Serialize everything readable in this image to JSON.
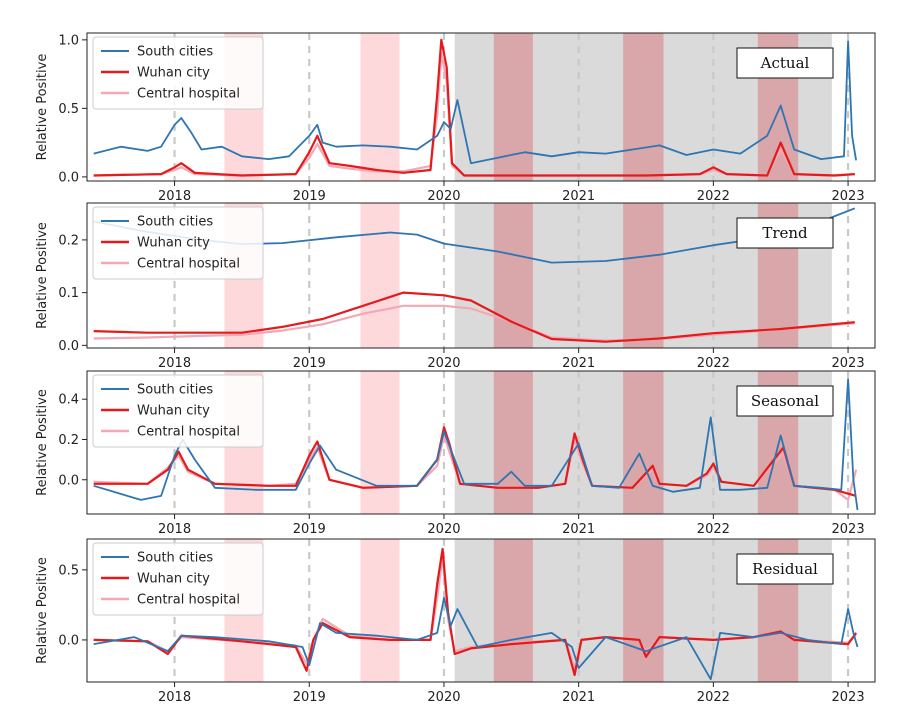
{
  "colors": {
    "south": "#2f75b2",
    "wuhan": "#e41a1c",
    "central": "#f4a7b4",
    "shade_red": "#fdd9dc",
    "shade_gray": "#dadada",
    "shade_dark": "#d9a6a9",
    "dashed": "#c9c9c9"
  },
  "chart_data": [
    {
      "type": "line",
      "panel_label": "Actual",
      "ylabel": "Relative Positive",
      "xlim": [
        2017.35,
        2023.2
      ],
      "ylim": [
        -0.03,
        1.05
      ],
      "yticks": [
        0.0,
        0.5,
        1.0
      ],
      "ytick_labels": [
        "0.0",
        "0.5",
        "1.0"
      ],
      "xticks": [
        2018,
        2019,
        2020,
        2021,
        2022,
        2023
      ],
      "xtick_labels": [
        "2018",
        "2019",
        "2020",
        "2021",
        "2022",
        "2023"
      ],
      "legend": "top-left",
      "red_shades": [
        [
          2018.37,
          2018.66
        ],
        [
          2019.38,
          2019.67
        ],
        [
          2020.37,
          2020.66
        ],
        [
          2021.33,
          2021.63
        ],
        [
          2022.33,
          2022.63
        ]
      ],
      "gray_band": [
        2020.08,
        2022.88
      ],
      "series": [
        {
          "name": "South cities",
          "key": "south",
          "x": [
            2017.4,
            2017.6,
            2017.8,
            2017.9,
            2018.0,
            2018.05,
            2018.12,
            2018.2,
            2018.35,
            2018.5,
            2018.7,
            2018.85,
            2019.0,
            2019.06,
            2019.1,
            2019.2,
            2019.4,
            2019.6,
            2019.8,
            2019.95,
            2020.0,
            2020.05,
            2020.1,
            2020.2,
            2020.4,
            2020.6,
            2020.8,
            2021.0,
            2021.2,
            2021.4,
            2021.6,
            2021.8,
            2022.0,
            2022.2,
            2022.4,
            2022.5,
            2022.6,
            2022.8,
            2022.97,
            2023.0,
            2023.03,
            2023.06
          ],
          "y": [
            0.17,
            0.22,
            0.19,
            0.22,
            0.38,
            0.43,
            0.33,
            0.2,
            0.22,
            0.15,
            0.13,
            0.15,
            0.3,
            0.38,
            0.25,
            0.22,
            0.23,
            0.22,
            0.2,
            0.3,
            0.4,
            0.35,
            0.56,
            0.1,
            0.14,
            0.18,
            0.15,
            0.18,
            0.17,
            0.2,
            0.23,
            0.16,
            0.2,
            0.17,
            0.3,
            0.52,
            0.2,
            0.13,
            0.15,
            0.99,
            0.3,
            0.12
          ]
        },
        {
          "name": "Wuhan city",
          "key": "wuhan",
          "x": [
            2017.4,
            2017.9,
            2018.0,
            2018.05,
            2018.15,
            2018.5,
            2018.9,
            2019.0,
            2019.06,
            2019.15,
            2019.3,
            2019.5,
            2019.7,
            2019.9,
            2019.95,
            2019.98,
            2020.02,
            2020.06,
            2020.15,
            2020.5,
            2021.0,
            2021.5,
            2021.9,
            2022.0,
            2022.1,
            2022.4,
            2022.5,
            2022.6,
            2022.9,
            2023.05
          ],
          "y": [
            0.01,
            0.02,
            0.07,
            0.1,
            0.03,
            0.01,
            0.02,
            0.18,
            0.3,
            0.1,
            0.08,
            0.05,
            0.03,
            0.05,
            0.6,
            1.0,
            0.8,
            0.1,
            0.01,
            0.01,
            0.01,
            0.01,
            0.02,
            0.07,
            0.02,
            0.01,
            0.25,
            0.02,
            0.01,
            0.02
          ]
        },
        {
          "name": "Central hospital",
          "key": "central",
          "x": [
            2017.4,
            2017.9,
            2018.0,
            2018.05,
            2018.15,
            2018.5,
            2018.9,
            2019.0,
            2019.06,
            2019.15,
            2019.3,
            2019.5,
            2019.7,
            2019.9,
            2019.95,
            2019.98,
            2020.02,
            2020.06,
            2020.15,
            2020.5,
            2021.0,
            2021.5,
            2021.9,
            2022.0,
            2022.1,
            2022.4,
            2022.5,
            2022.6,
            2022.9,
            2023.05
          ],
          "y": [
            0.01,
            0.02,
            0.05,
            0.07,
            0.02,
            0.01,
            0.02,
            0.14,
            0.24,
            0.08,
            0.06,
            0.04,
            0.04,
            0.08,
            0.45,
            0.9,
            0.7,
            0.08,
            0.01,
            0.01,
            0.01,
            0.01,
            0.02,
            0.05,
            0.02,
            0.01,
            0.2,
            0.02,
            0.01,
            0.02
          ]
        }
      ]
    },
    {
      "type": "line",
      "panel_label": "Trend",
      "ylabel": "Relative Positive",
      "xlim": [
        2017.35,
        2023.2
      ],
      "ylim": [
        -0.005,
        0.27
      ],
      "yticks": [
        0.0,
        0.1,
        0.2
      ],
      "ytick_labels": [
        "0.0",
        "0.1",
        "0.2"
      ],
      "xticks": [
        2018,
        2019,
        2020,
        2021,
        2022,
        2023
      ],
      "xtick_labels": [
        "2018",
        "2019",
        "2020",
        "2021",
        "2022",
        "2023"
      ],
      "legend": "top-left",
      "red_shades": [
        [
          2018.37,
          2018.66
        ],
        [
          2019.38,
          2019.67
        ],
        [
          2020.37,
          2020.66
        ],
        [
          2021.33,
          2021.63
        ],
        [
          2022.33,
          2022.63
        ]
      ],
      "gray_band": [
        2020.08,
        2022.88
      ],
      "series": [
        {
          "name": "South cities",
          "key": "south",
          "x": [
            2017.4,
            2017.8,
            2018.2,
            2018.5,
            2018.8,
            2019.2,
            2019.6,
            2019.8,
            2020.0,
            2020.4,
            2020.8,
            2021.2,
            2021.6,
            2022.0,
            2022.4,
            2022.8,
            2023.05
          ],
          "y": [
            0.235,
            0.215,
            0.2,
            0.192,
            0.194,
            0.205,
            0.214,
            0.21,
            0.193,
            0.178,
            0.157,
            0.16,
            0.172,
            0.19,
            0.205,
            0.235,
            0.26
          ]
        },
        {
          "name": "Wuhan city",
          "key": "wuhan",
          "x": [
            2017.4,
            2017.8,
            2018.2,
            2018.5,
            2018.8,
            2019.1,
            2019.4,
            2019.7,
            2020.0,
            2020.2,
            2020.5,
            2020.8,
            2021.2,
            2021.6,
            2022.0,
            2022.5,
            2023.05
          ],
          "y": [
            0.027,
            0.024,
            0.024,
            0.024,
            0.035,
            0.05,
            0.075,
            0.1,
            0.095,
            0.085,
            0.045,
            0.012,
            0.007,
            0.013,
            0.023,
            0.031,
            0.044
          ]
        },
        {
          "name": "Central hospital",
          "key": "central",
          "x": [
            2017.4,
            2017.8,
            2018.2,
            2018.5,
            2018.8,
            2019.1,
            2019.4,
            2019.7,
            2020.0,
            2020.2,
            2020.5,
            2020.8,
            2021.2,
            2021.6,
            2022.0,
            2022.5,
            2023.05
          ],
          "y": [
            0.013,
            0.015,
            0.018,
            0.02,
            0.028,
            0.04,
            0.06,
            0.075,
            0.075,
            0.07,
            0.045,
            0.015,
            0.009,
            0.012,
            0.02,
            0.03,
            0.042
          ]
        }
      ]
    },
    {
      "type": "line",
      "panel_label": "Seasonal",
      "ylabel": "Relative Positive",
      "xlim": [
        2017.35,
        2023.2
      ],
      "ylim": [
        -0.17,
        0.54
      ],
      "yticks": [
        0.0,
        0.2,
        0.4
      ],
      "ytick_labels": [
        "0.0",
        "0.2",
        "0.4"
      ],
      "xticks": [
        2018,
        2019,
        2020,
        2021,
        2022,
        2023
      ],
      "xtick_labels": [
        "2018",
        "2019",
        "2020",
        "2021",
        "2022",
        "2023"
      ],
      "legend": "top-left",
      "red_shades": [
        [
          2018.37,
          2018.66
        ],
        [
          2019.38,
          2019.67
        ],
        [
          2020.37,
          2020.66
        ],
        [
          2021.33,
          2021.63
        ],
        [
          2022.33,
          2022.63
        ]
      ],
      "gray_band": [
        2020.08,
        2022.88
      ],
      "series": [
        {
          "name": "South cities",
          "key": "south",
          "x": [
            2017.4,
            2017.6,
            2017.75,
            2017.9,
            2018.0,
            2018.06,
            2018.15,
            2018.3,
            2018.6,
            2018.9,
            2019.0,
            2019.08,
            2019.2,
            2019.5,
            2019.8,
            2019.95,
            2020.0,
            2020.05,
            2020.15,
            2020.4,
            2020.5,
            2020.6,
            2020.8,
            2021.0,
            2021.1,
            2021.3,
            2021.45,
            2021.55,
            2021.7,
            2021.9,
            2021.98,
            2022.05,
            2022.2,
            2022.4,
            2022.5,
            2022.6,
            2022.8,
            2022.95,
            2023.0,
            2023.04,
            2023.07
          ],
          "y": [
            -0.03,
            -0.07,
            -0.1,
            -0.08,
            0.12,
            0.2,
            0.1,
            -0.04,
            -0.05,
            -0.05,
            0.08,
            0.17,
            0.05,
            -0.03,
            -0.03,
            0.1,
            0.24,
            0.15,
            -0.02,
            -0.02,
            0.04,
            -0.03,
            -0.03,
            0.18,
            -0.03,
            -0.04,
            0.13,
            -0.03,
            -0.06,
            -0.04,
            0.31,
            -0.05,
            -0.05,
            -0.04,
            0.22,
            -0.03,
            -0.04,
            -0.05,
            0.5,
            0.0,
            -0.15
          ]
        },
        {
          "name": "Wuhan city",
          "key": "wuhan",
          "x": [
            2017.4,
            2017.8,
            2017.95,
            2018.03,
            2018.1,
            2018.3,
            2018.7,
            2018.9,
            2019.0,
            2019.06,
            2019.15,
            2019.4,
            2019.8,
            2019.95,
            2020.0,
            2020.04,
            2020.12,
            2020.4,
            2020.7,
            2020.9,
            2020.97,
            2021.03,
            2021.1,
            2021.4,
            2021.55,
            2021.6,
            2021.8,
            2021.95,
            2022.0,
            2022.06,
            2022.3,
            2022.45,
            2022.52,
            2022.6,
            2022.9,
            2023.06
          ],
          "y": [
            -0.02,
            -0.02,
            0.05,
            0.14,
            0.05,
            -0.02,
            -0.03,
            -0.03,
            0.12,
            0.19,
            0.0,
            -0.04,
            -0.03,
            0.1,
            0.26,
            0.18,
            -0.02,
            -0.04,
            -0.04,
            -0.02,
            0.23,
            0.1,
            -0.03,
            -0.04,
            0.07,
            -0.02,
            -0.03,
            0.03,
            0.08,
            -0.01,
            -0.03,
            0.1,
            0.16,
            -0.03,
            -0.05,
            -0.08
          ]
        },
        {
          "name": "Central hospital",
          "key": "central",
          "x": [
            2017.4,
            2017.8,
            2017.95,
            2018.03,
            2018.1,
            2018.3,
            2018.7,
            2018.9,
            2019.0,
            2019.06,
            2019.15,
            2019.4,
            2019.8,
            2019.95,
            2020.0,
            2020.04,
            2020.12,
            2020.4,
            2020.7,
            2020.9,
            2020.97,
            2021.03,
            2021.1,
            2021.4,
            2021.55,
            2021.6,
            2021.8,
            2021.95,
            2022.0,
            2022.06,
            2022.3,
            2022.45,
            2022.52,
            2022.6,
            2022.9,
            2023.0,
            2023.06
          ],
          "y": [
            -0.01,
            -0.02,
            0.06,
            0.12,
            0.04,
            -0.02,
            -0.03,
            -0.02,
            0.1,
            0.16,
            0.0,
            -0.04,
            -0.03,
            0.07,
            0.22,
            0.14,
            -0.02,
            -0.04,
            -0.04,
            -0.02,
            0.2,
            0.08,
            -0.03,
            -0.04,
            0.05,
            -0.02,
            -0.03,
            0.02,
            0.06,
            -0.01,
            -0.03,
            0.08,
            0.13,
            -0.03,
            -0.05,
            -0.1,
            0.05
          ]
        }
      ]
    },
    {
      "type": "line",
      "panel_label": "Residual",
      "ylabel": "Relative Positive",
      "xlim": [
        2017.35,
        2023.2
      ],
      "ylim": [
        -0.3,
        0.72
      ],
      "yticks": [
        0.0,
        0.5
      ],
      "ytick_labels": [
        "0.0",
        "0.5"
      ],
      "xticks": [
        2018,
        2019,
        2020,
        2021,
        2022,
        2023
      ],
      "xtick_labels": [
        "2018",
        "2019",
        "2020",
        "2021",
        "2022",
        "2023"
      ],
      "legend": "top-left",
      "red_shades": [
        [
          2018.37,
          2018.66
        ],
        [
          2019.38,
          2019.67
        ],
        [
          2020.37,
          2020.66
        ],
        [
          2021.33,
          2021.63
        ],
        [
          2022.33,
          2022.63
        ]
      ],
      "gray_band": [
        2020.08,
        2022.88
      ],
      "series": [
        {
          "name": "South cities",
          "key": "south",
          "x": [
            2017.4,
            2017.7,
            2017.95,
            2018.05,
            2018.3,
            2018.7,
            2018.95,
            2019.0,
            2019.08,
            2019.2,
            2019.5,
            2019.8,
            2019.95,
            2020.0,
            2020.05,
            2020.1,
            2020.25,
            2020.5,
            2020.8,
            2020.95,
            2021.0,
            2021.2,
            2021.5,
            2021.8,
            2021.98,
            2022.05,
            2022.3,
            2022.5,
            2022.7,
            2022.95,
            2023.0,
            2023.04,
            2023.07
          ],
          "y": [
            -0.03,
            0.02,
            -0.08,
            0.03,
            0.02,
            -0.01,
            -0.05,
            -0.18,
            0.12,
            0.05,
            0.03,
            0.0,
            0.05,
            0.3,
            0.1,
            0.22,
            -0.05,
            0.0,
            0.05,
            -0.05,
            -0.2,
            0.02,
            -0.08,
            0.02,
            -0.28,
            0.05,
            0.02,
            0.05,
            0.0,
            -0.03,
            0.22,
            0.05,
            -0.05
          ]
        },
        {
          "name": "Wuhan city",
          "key": "wuhan",
          "x": [
            2017.4,
            2017.8,
            2017.95,
            2018.05,
            2018.5,
            2018.9,
            2018.98,
            2019.03,
            2019.1,
            2019.3,
            2019.6,
            2019.9,
            2019.95,
            2019.99,
            2020.03,
            2020.08,
            2020.2,
            2020.5,
            2020.9,
            2020.97,
            2021.02,
            2021.2,
            2021.45,
            2021.5,
            2021.6,
            2022.0,
            2022.3,
            2022.5,
            2022.6,
            2023.0,
            2023.06
          ],
          "y": [
            0.0,
            -0.01,
            -0.1,
            0.03,
            -0.01,
            -0.05,
            -0.22,
            0.0,
            0.12,
            0.02,
            0.0,
            0.0,
            0.4,
            0.65,
            0.2,
            -0.1,
            -0.06,
            -0.03,
            0.0,
            -0.25,
            0.0,
            0.02,
            0.0,
            -0.12,
            0.02,
            0.0,
            0.02,
            0.06,
            0.0,
            -0.03,
            0.05
          ]
        },
        {
          "name": "Central hospital",
          "key": "central",
          "x": [
            2017.4,
            2017.8,
            2017.95,
            2018.05,
            2018.5,
            2018.9,
            2018.98,
            2019.03,
            2019.1,
            2019.3,
            2019.6,
            2019.9,
            2019.95,
            2019.99,
            2020.03,
            2020.08,
            2020.2,
            2020.5,
            2020.9,
            2020.97,
            2021.02,
            2021.2,
            2021.45,
            2021.5,
            2021.6,
            2022.0,
            2022.3,
            2022.5,
            2022.6,
            2023.0,
            2023.06
          ],
          "y": [
            0.0,
            -0.01,
            -0.08,
            0.02,
            -0.01,
            -0.04,
            -0.17,
            0.0,
            0.15,
            0.03,
            0.0,
            0.0,
            0.3,
            0.6,
            0.15,
            -0.08,
            -0.05,
            -0.02,
            0.0,
            -0.2,
            0.0,
            0.02,
            0.0,
            -0.08,
            0.02,
            0.0,
            0.02,
            0.05,
            0.0,
            -0.02,
            0.04
          ]
        }
      ]
    }
  ]
}
